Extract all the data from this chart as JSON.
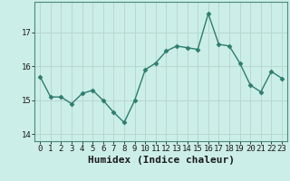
{
  "x": [
    0,
    1,
    2,
    3,
    4,
    5,
    6,
    7,
    8,
    9,
    10,
    11,
    12,
    13,
    14,
    15,
    16,
    17,
    18,
    19,
    20,
    21,
    22,
    23
  ],
  "y": [
    15.7,
    15.1,
    15.1,
    14.9,
    15.2,
    15.3,
    15.0,
    14.65,
    14.35,
    15.0,
    15.9,
    16.1,
    16.45,
    16.6,
    16.55,
    16.5,
    17.55,
    16.65,
    16.6,
    16.1,
    15.45,
    15.25,
    15.85,
    15.65
  ],
  "line_color": "#2d7d6e",
  "marker": "D",
  "marker_size": 2.5,
  "bg_color": "#cceee8",
  "grid_color": "#b8d8d0",
  "xlabel": "Humidex (Indice chaleur)",
  "xlabel_fontsize": 8,
  "yticks": [
    14,
    15,
    16,
    17
  ],
  "ylim": [
    13.8,
    17.9
  ],
  "xlim": [
    -0.5,
    23.5
  ],
  "xtick_labels": [
    "0",
    "1",
    "2",
    "3",
    "4",
    "5",
    "6",
    "7",
    "8",
    "9",
    "10",
    "11",
    "12",
    "13",
    "14",
    "15",
    "16",
    "17",
    "18",
    "19",
    "20",
    "21",
    "22",
    "23"
  ],
  "tick_fontsize": 6.5,
  "linewidth": 1.0
}
